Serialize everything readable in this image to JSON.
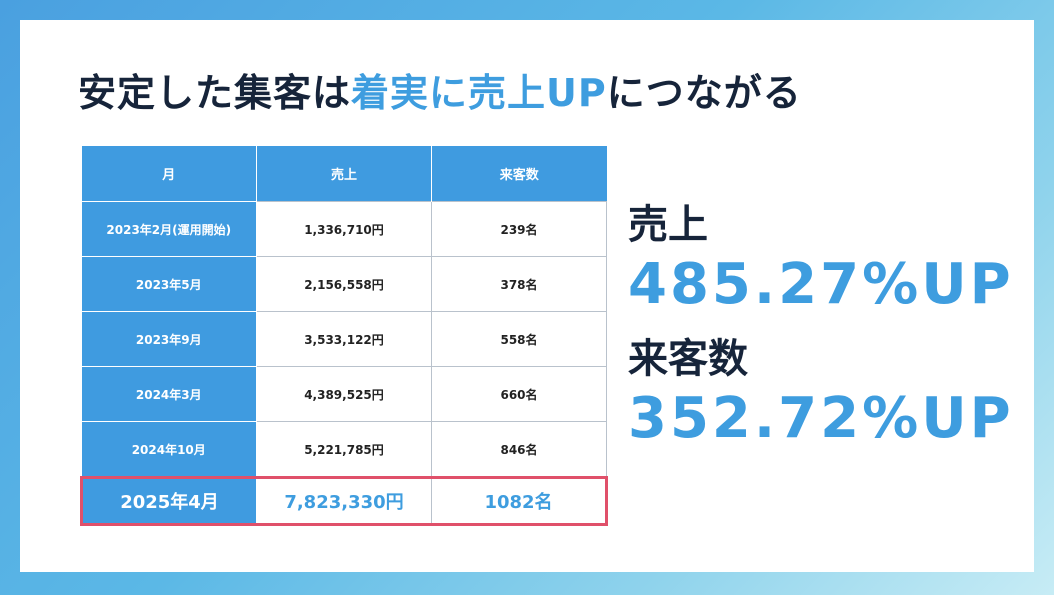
{
  "title": {
    "part1": "安定した集客は",
    "highlight": "着実に売上UP",
    "part2": "につながる"
  },
  "table": {
    "headers": [
      "月",
      "売上",
      "来客数"
    ],
    "rows": [
      {
        "month": "2023年2月(運用開始)",
        "sales": "1,336,710円",
        "visitors": "239名"
      },
      {
        "month": "2023年5月",
        "sales": "2,156,558円",
        "visitors": "378名"
      },
      {
        "month": "2023年9月",
        "sales": "3,533,122円",
        "visitors": "558名"
      },
      {
        "month": "2024年3月",
        "sales": "4,389,525円",
        "visitors": "660名"
      },
      {
        "month": "2024年10月",
        "sales": "5,221,785円",
        "visitors": "846名"
      },
      {
        "month": "2025年4月",
        "sales": "7,823,330円",
        "visitors": "1082名"
      }
    ]
  },
  "stats": {
    "sales_label": "売上",
    "sales_value": "485.27%UP",
    "visitors_label": "来客数",
    "visitors_value": "352.72%UP"
  },
  "colors": {
    "accent": "#3e9ddf",
    "header_bg": "#3f9be0",
    "highlight_border": "#e0506a",
    "text_dark": "#16243a"
  }
}
